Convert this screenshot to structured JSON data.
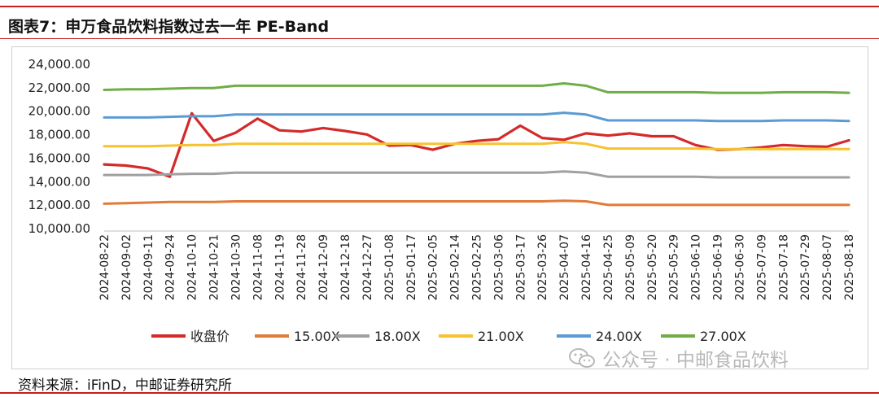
{
  "header": {
    "title": "图表7：申万食品饮料指数过去一年 PE-Band"
  },
  "footer": {
    "source": "资料来源：iFinD，中邮证券研究所"
  },
  "watermark": {
    "text": "公众号 · 中邮食品饮料",
    "icon": "wechat-icon"
  },
  "chart_data": {
    "type": "line",
    "title": "",
    "xlabel": "",
    "ylabel": "",
    "ylim": [
      10000,
      24000
    ],
    "yticks": [
      "10,000.00",
      "12,000.00",
      "14,000.00",
      "16,000.00",
      "18,000.00",
      "20,000.00",
      "22,000.00",
      "24,000.00"
    ],
    "grid": false,
    "legend_position": "bottom",
    "categories": [
      "2024-08-22",
      "2024-09-02",
      "2024-09-11",
      "2024-09-24",
      "2024-10-10",
      "2024-10-21",
      "2024-10-30",
      "2024-11-08",
      "2024-11-19",
      "2024-11-28",
      "2024-12-09",
      "2024-12-18",
      "2024-12-27",
      "2025-01-08",
      "2025-01-17",
      "2025-02-05",
      "2025-02-14",
      "2025-02-25",
      "2025-03-06",
      "2025-03-17",
      "2025-03-26",
      "2025-04-07",
      "2025-04-16",
      "2025-04-25",
      "2025-05-09",
      "2025-05-20",
      "2025-05-29",
      "2025-06-10",
      "2025-06-19",
      "2025-06-30",
      "2025-07-09",
      "2025-07-18",
      "2025-07-29",
      "2025-08-07",
      "2025-08-18"
    ],
    "series": [
      {
        "name": "收盘价",
        "color": "#d42a2a",
        "values": [
          15400,
          15300,
          15050,
          14350,
          19750,
          17400,
          18100,
          19300,
          18300,
          18200,
          18500,
          18250,
          17950,
          17000,
          17050,
          16650,
          17150,
          17400,
          17550,
          18700,
          17650,
          17500,
          18050,
          17850,
          18050,
          17800,
          17800,
          17050,
          16650,
          16700,
          16850,
          17050,
          16950,
          16900,
          17450
        ]
      },
      {
        "name": "15.00X",
        "color": "#e07b39",
        "values": [
          12050,
          12100,
          12150,
          12200,
          12200,
          12200,
          12250,
          12250,
          12250,
          12250,
          12250,
          12250,
          12250,
          12250,
          12250,
          12250,
          12250,
          12250,
          12250,
          12250,
          12250,
          12300,
          12250,
          11950,
          11950,
          11950,
          11950,
          11950,
          11950,
          11950,
          11950,
          11950,
          11950,
          11950,
          11950
        ]
      },
      {
        "name": "18.00X",
        "color": "#a0a0a0",
        "values": [
          14500,
          14500,
          14500,
          14550,
          14600,
          14600,
          14700,
          14700,
          14700,
          14700,
          14700,
          14700,
          14700,
          14700,
          14700,
          14700,
          14700,
          14700,
          14700,
          14700,
          14700,
          14800,
          14700,
          14350,
          14350,
          14350,
          14350,
          14350,
          14300,
          14300,
          14300,
          14300,
          14300,
          14300,
          14300
        ]
      },
      {
        "name": "21.00X",
        "color": "#f7c22f",
        "values": [
          16950,
          16950,
          16950,
          17000,
          17050,
          17050,
          17150,
          17150,
          17150,
          17150,
          17150,
          17150,
          17150,
          17150,
          17150,
          17150,
          17150,
          17150,
          17150,
          17150,
          17150,
          17300,
          17150,
          16750,
          16750,
          16750,
          16750,
          16750,
          16700,
          16700,
          16700,
          16700,
          16700,
          16700,
          16700
        ]
      },
      {
        "name": "24.00X",
        "color": "#5b9bd5",
        "values": [
          19400,
          19400,
          19400,
          19450,
          19500,
          19500,
          19650,
          19650,
          19650,
          19650,
          19650,
          19650,
          19650,
          19650,
          19650,
          19650,
          19650,
          19650,
          19650,
          19650,
          19650,
          19800,
          19650,
          19150,
          19150,
          19150,
          19150,
          19150,
          19100,
          19100,
          19100,
          19150,
          19150,
          19150,
          19100
        ]
      },
      {
        "name": "27.00X",
        "color": "#70ad47",
        "values": [
          21750,
          21800,
          21800,
          21850,
          21900,
          21900,
          22100,
          22100,
          22100,
          22100,
          22100,
          22100,
          22100,
          22100,
          22100,
          22100,
          22100,
          22100,
          22100,
          22100,
          22100,
          22300,
          22100,
          21550,
          21550,
          21550,
          21550,
          21550,
          21500,
          21500,
          21500,
          21550,
          21550,
          21550,
          21500
        ]
      }
    ]
  }
}
